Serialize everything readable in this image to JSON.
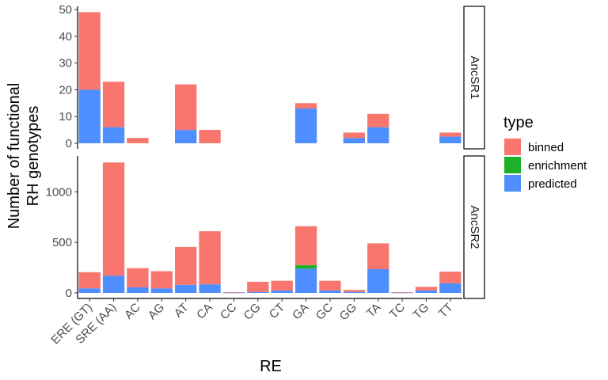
{
  "chart_data": {
    "type": "bar",
    "stacked": true,
    "xlabel": "RE",
    "ylabel_line1": "Number of functional",
    "ylabel_line2": "RH genotypes",
    "categories": [
      "ERE (GT)",
      "SRE (AA)",
      "AC",
      "AG",
      "AT",
      "CA",
      "CC",
      "CG",
      "CT",
      "GA",
      "GC",
      "GG",
      "TA",
      "TC",
      "TG",
      "TT"
    ],
    "legend": {
      "title": "type",
      "entries": [
        {
          "name": "binned",
          "color": "#F8766D"
        },
        {
          "name": "enrichment",
          "color": "#1FB02A"
        },
        {
          "name": "predicted",
          "color": "#4E8EFF"
        }
      ],
      "placement": "right"
    },
    "facets": [
      {
        "label": "AncSR1",
        "ylim": [
          0,
          50
        ],
        "yticks": [
          0,
          10,
          20,
          30,
          40,
          50
        ],
        "series": [
          {
            "name": "predicted",
            "values": [
              20,
              6,
              0,
              0,
              5,
              0,
              0,
              0,
              0,
              13,
              0,
              2,
              6,
              0,
              0,
              2.5
            ]
          },
          {
            "name": "enrichment",
            "values": [
              0,
              0,
              0,
              0,
              0,
              0,
              0,
              0,
              0,
              0,
              0,
              0,
              0,
              0,
              0,
              0
            ]
          },
          {
            "name": "binned",
            "values": [
              29,
              17,
              2,
              0,
              17,
              5,
              0,
              0,
              0,
              2,
              0,
              2,
              5,
              0,
              0,
              1.5
            ]
          }
        ]
      },
      {
        "label": "AncSR2",
        "ylim": [
          0,
          1300
        ],
        "yticks": [
          0,
          500,
          1000
        ],
        "series": [
          {
            "name": "predicted",
            "values": [
              45,
              170,
              55,
              45,
              80,
              85,
              3,
              10,
              25,
              240,
              25,
              10,
              235,
              3,
              25,
              95
            ]
          },
          {
            "name": "enrichment",
            "values": [
              0,
              0,
              0,
              0,
              0,
              0,
              0,
              0,
              0,
              35,
              0,
              0,
              0,
              0,
              0,
              0
            ]
          },
          {
            "name": "binned",
            "values": [
              160,
              1120,
              190,
              170,
              375,
              525,
              5,
              100,
              95,
              385,
              95,
              20,
              255,
              5,
              35,
              115
            ]
          }
        ]
      }
    ],
    "grid": false
  }
}
